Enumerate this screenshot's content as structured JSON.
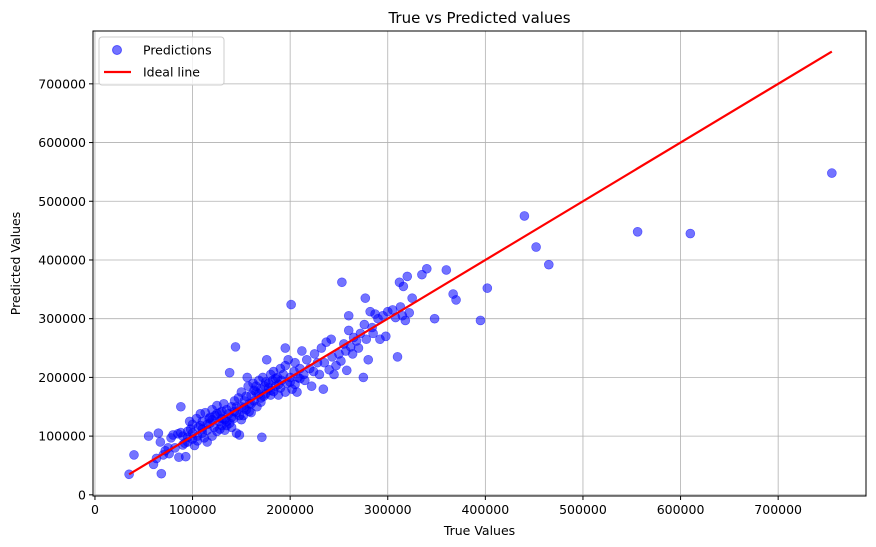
{
  "chart_data": {
    "type": "scatter",
    "title": "True vs Predicted values",
    "xlabel": "True Values",
    "ylabel": "Predicted Values",
    "xlim": [
      -2000,
      790000
    ],
    "ylim": [
      -2000,
      790000
    ],
    "xticks": [
      0,
      100000,
      200000,
      300000,
      400000,
      500000,
      600000,
      700000
    ],
    "yticks": [
      0,
      100000,
      200000,
      300000,
      400000,
      500000,
      600000,
      700000
    ],
    "grid": true,
    "legend_position": "top-left",
    "series": [
      {
        "name": "Predictions",
        "kind": "scatter",
        "color": "#0000ff",
        "alpha": 0.55,
        "points": [
          [
            35000,
            35000
          ],
          [
            40000,
            68000
          ],
          [
            55000,
            100000
          ],
          [
            60000,
            52000
          ],
          [
            63000,
            62000
          ],
          [
            65000,
            105000
          ],
          [
            67000,
            90000
          ],
          [
            68000,
            36000
          ],
          [
            70000,
            68000
          ],
          [
            72000,
            75000
          ],
          [
            75000,
            80000
          ],
          [
            76000,
            70000
          ],
          [
            78000,
            97000
          ],
          [
            80000,
            102000
          ],
          [
            82000,
            80000
          ],
          [
            85000,
            104000
          ],
          [
            86000,
            64000
          ],
          [
            88000,
            150000
          ],
          [
            88000,
            106000
          ],
          [
            90000,
            85000
          ],
          [
            92000,
            88000
          ],
          [
            93000,
            65000
          ],
          [
            95000,
            98000
          ],
          [
            95000,
            108000
          ],
          [
            97000,
            125000
          ],
          [
            98000,
            112000
          ],
          [
            100000,
            95000
          ],
          [
            100000,
            120000
          ],
          [
            102000,
            84000
          ],
          [
            104000,
            130000
          ],
          [
            105000,
            100000
          ],
          [
            106000,
            115000
          ],
          [
            108000,
            138000
          ],
          [
            110000,
            105000
          ],
          [
            110000,
            125000
          ],
          [
            112000,
            97000
          ],
          [
            113000,
            140000
          ],
          [
            115000,
            90000
          ],
          [
            115000,
            110000
          ],
          [
            117000,
            130000
          ],
          [
            118000,
            122000
          ],
          [
            120000,
            100000
          ],
          [
            120000,
            145000
          ],
          [
            122000,
            115000
          ],
          [
            123000,
            135000
          ],
          [
            125000,
            108000
          ],
          [
            125000,
            152000
          ],
          [
            127000,
            125000
          ],
          [
            128000,
            140000
          ],
          [
            130000,
            118000
          ],
          [
            130000,
            130000
          ],
          [
            132000,
            155000
          ],
          [
            133000,
            110000
          ],
          [
            135000,
            145000
          ],
          [
            135000,
            125000
          ],
          [
            137000,
            138000
          ],
          [
            138000,
            208000
          ],
          [
            140000,
            115000
          ],
          [
            140000,
            150000
          ],
          [
            142000,
            130000
          ],
          [
            143000,
            160000
          ],
          [
            144000,
            252000
          ],
          [
            145000,
            105000
          ],
          [
            145000,
            140000
          ],
          [
            147000,
            165000
          ],
          [
            148000,
            102000
          ],
          [
            150000,
            150000
          ],
          [
            150000,
            175000
          ],
          [
            152000,
            135000
          ],
          [
            153000,
            160000
          ],
          [
            155000,
            145000
          ],
          [
            156000,
            200000
          ],
          [
            157000,
            185000
          ],
          [
            158000,
            155000
          ],
          [
            160000,
            170000
          ],
          [
            160000,
            140000
          ],
          [
            162000,
            190000
          ],
          [
            163000,
            160000
          ],
          [
            165000,
            175000
          ],
          [
            166000,
            150000
          ],
          [
            168000,
            195000
          ],
          [
            170000,
            180000
          ],
          [
            170000,
            165000
          ],
          [
            171000,
            98000
          ],
          [
            172000,
            200000
          ],
          [
            174000,
            185000
          ],
          [
            175000,
            172000
          ],
          [
            176000,
            230000
          ],
          [
            178000,
            190000
          ],
          [
            180000,
            205000
          ],
          [
            180000,
            178000
          ],
          [
            182000,
            195000
          ],
          [
            183000,
            210000
          ],
          [
            185000,
            185000
          ],
          [
            187000,
            200000
          ],
          [
            188000,
            170000
          ],
          [
            190000,
            215000
          ],
          [
            191000,
            195000
          ],
          [
            193000,
            205000
          ],
          [
            195000,
            220000
          ],
          [
            195000,
            250000
          ],
          [
            197000,
            190000
          ],
          [
            198000,
            230000
          ],
          [
            200000,
            200000
          ],
          [
            201000,
            324000
          ],
          [
            202000,
            180000
          ],
          [
            204000,
            210000
          ],
          [
            205000,
            225000
          ],
          [
            207000,
            175000
          ],
          [
            208000,
            200000
          ],
          [
            210000,
            215000
          ],
          [
            212000,
            245000
          ],
          [
            214000,
            205000
          ],
          [
            215000,
            195000
          ],
          [
            217000,
            230000
          ],
          [
            220000,
            215000
          ],
          [
            222000,
            185000
          ],
          [
            224000,
            210000
          ],
          [
            225000,
            240000
          ],
          [
            228000,
            225000
          ],
          [
            230000,
            205000
          ],
          [
            232000,
            250000
          ],
          [
            234000,
            180000
          ],
          [
            235000,
            225000
          ],
          [
            237000,
            260000
          ],
          [
            240000,
            213000
          ],
          [
            242000,
            265000
          ],
          [
            243000,
            235000
          ],
          [
            245000,
            205000
          ],
          [
            247000,
            220000
          ],
          [
            250000,
            240000
          ],
          [
            252000,
            228000
          ],
          [
            253000,
            362000
          ],
          [
            255000,
            257000
          ],
          [
            257000,
            245000
          ],
          [
            258000,
            212000
          ],
          [
            260000,
            305000
          ],
          [
            260000,
            280000
          ],
          [
            262000,
            252000
          ],
          [
            264000,
            240000
          ],
          [
            265000,
            268000
          ],
          [
            268000,
            262000
          ],
          [
            270000,
            250000
          ],
          [
            272000,
            275000
          ],
          [
            275000,
            200000
          ],
          [
            276000,
            290000
          ],
          [
            277000,
            335000
          ],
          [
            278000,
            265000
          ],
          [
            280000,
            230000
          ],
          [
            282000,
            312000
          ],
          [
            284000,
            285000
          ],
          [
            285000,
            275000
          ],
          [
            287000,
            308000
          ],
          [
            290000,
            300000
          ],
          [
            292000,
            265000
          ],
          [
            295000,
            305000
          ],
          [
            298000,
            270000
          ],
          [
            300000,
            312000
          ],
          [
            305000,
            315000
          ],
          [
            308000,
            302000
          ],
          [
            310000,
            235000
          ],
          [
            312000,
            362000
          ],
          [
            313000,
            320000
          ],
          [
            315000,
            305000
          ],
          [
            316000,
            355000
          ],
          [
            318000,
            297000
          ],
          [
            320000,
            372000
          ],
          [
            322000,
            310000
          ],
          [
            325000,
            335000
          ],
          [
            335000,
            375000
          ],
          [
            340000,
            385000
          ],
          [
            348000,
            300000
          ],
          [
            360000,
            383000
          ],
          [
            367000,
            342000
          ],
          [
            370000,
            332000
          ],
          [
            395000,
            297000
          ],
          [
            402000,
            352000
          ],
          [
            440000,
            475000
          ],
          [
            452000,
            422000
          ],
          [
            465000,
            392000
          ],
          [
            556000,
            448000
          ],
          [
            610000,
            445000
          ],
          [
            755000,
            548000
          ],
          [
            120000,
            128000
          ],
          [
            125000,
            138000
          ],
          [
            130000,
            142000
          ],
          [
            135000,
            118000
          ],
          [
            140000,
            132000
          ],
          [
            145000,
            150000
          ],
          [
            150000,
            128000
          ],
          [
            155000,
            168000
          ],
          [
            160000,
            155000
          ],
          [
            165000,
            185000
          ],
          [
            170000,
            158000
          ],
          [
            175000,
            192000
          ],
          [
            180000,
            170000
          ],
          [
            185000,
            198000
          ],
          [
            190000,
            182000
          ],
          [
            195000,
            175000
          ],
          [
            200000,
            192000
          ],
          [
            205000,
            188000
          ],
          [
            210000,
            198000
          ],
          [
            115000,
            120000
          ],
          [
            110000,
            112000
          ],
          [
            118000,
            132000
          ],
          [
            128000,
            112000
          ],
          [
            133000,
            128000
          ],
          [
            138000,
            122000
          ],
          [
            143000,
            142000
          ],
          [
            148000,
            135000
          ],
          [
            153000,
            148000
          ],
          [
            158000,
            142000
          ],
          [
            163000,
            178000
          ],
          [
            168000,
            172000
          ],
          [
            173000,
            168000
          ],
          [
            178000,
            182000
          ],
          [
            183000,
            176000
          ],
          [
            188000,
            188000
          ],
          [
            100000,
            105000
          ],
          [
            105000,
            92000
          ],
          [
            95000,
            90000
          ],
          [
            90000,
            100000
          ],
          [
            108000,
            118000
          ]
        ]
      },
      {
        "name": "Ideal line",
        "kind": "line",
        "color": "#ff0000",
        "points": [
          [
            35000,
            35000
          ],
          [
            755000,
            755000
          ]
        ]
      }
    ]
  }
}
